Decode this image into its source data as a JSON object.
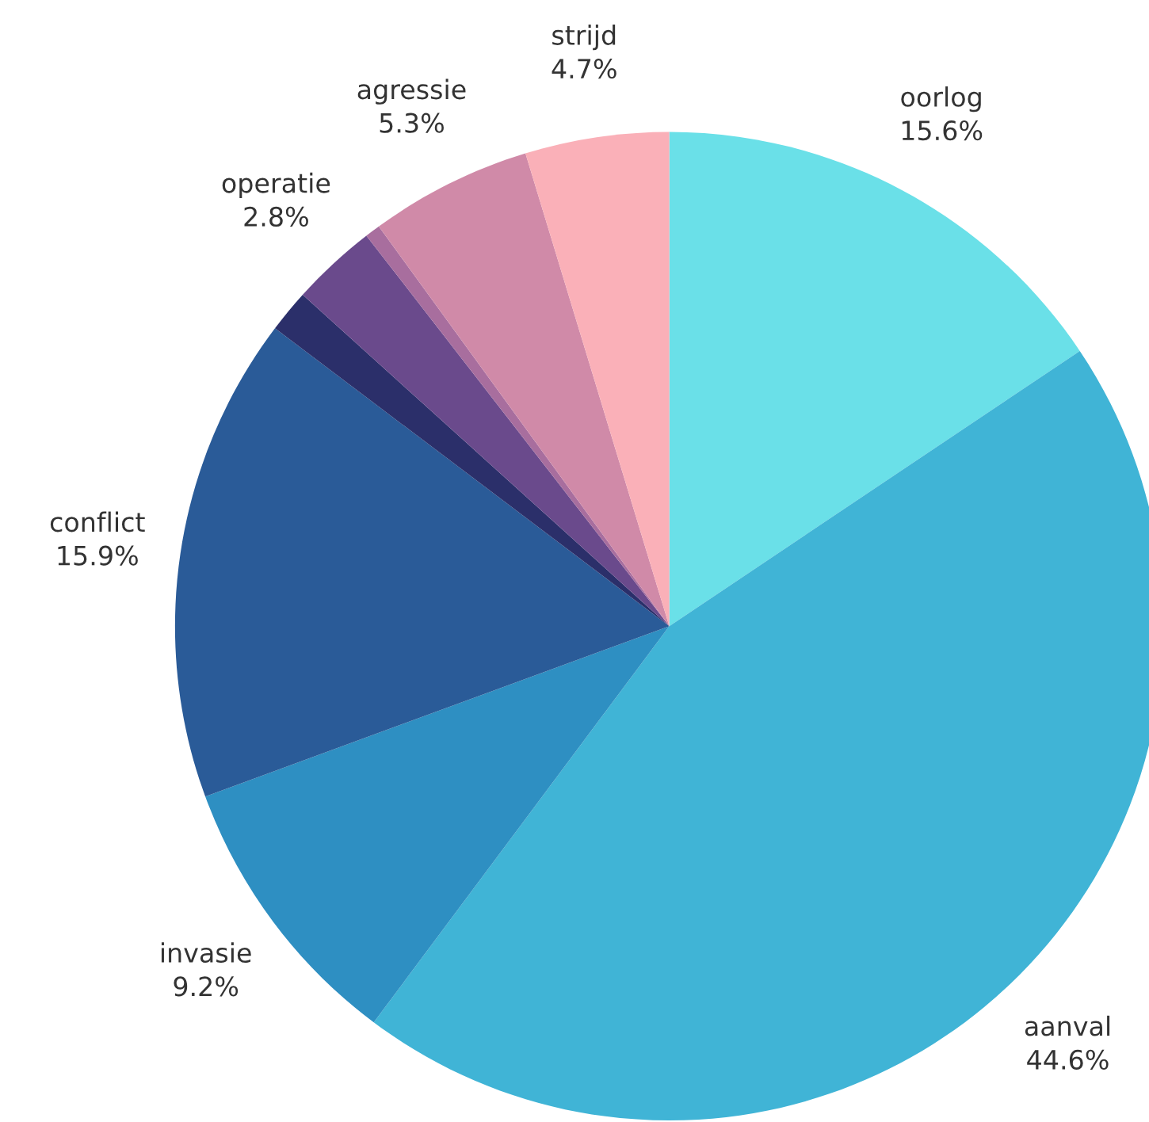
{
  "chart_data": {
    "type": "pie",
    "categories": [
      "oorlog",
      "aanval",
      "invasie",
      "conflict",
      null,
      "operatie",
      null,
      "agressie",
      "strijd"
    ],
    "values": [
      15.6,
      44.6,
      9.2,
      15.9,
      1.4,
      2.8,
      0.5,
      5.3,
      4.7
    ],
    "value_labels": [
      "15.6%",
      "44.6%",
      "9.2%",
      "15.9%",
      null,
      "2.8%",
      null,
      "5.3%",
      "4.7%"
    ],
    "colors": [
      "#6ae0e8",
      "#40b4d6",
      "#2e8fc2",
      "#2a5b98",
      "#2b2f6a",
      "#6a4a8c",
      "#a86e9e",
      "#d08aa8",
      "#fab0b8"
    ],
    "legend": false
  }
}
